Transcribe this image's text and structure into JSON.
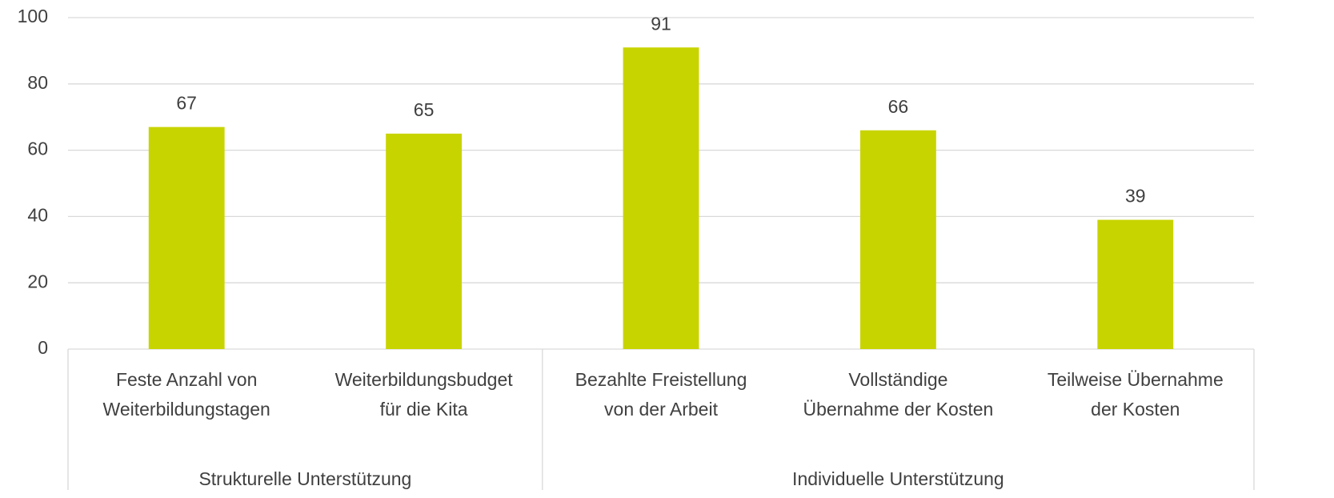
{
  "chart_data": {
    "type": "bar",
    "color": "#c8d400",
    "grid": true,
    "ylim": [
      0,
      100
    ],
    "yticks": [
      0,
      20,
      40,
      60,
      80,
      100
    ],
    "groups": [
      {
        "name": "Strukturelle Unterstützung",
        "categories": [
          "Feste Anzahl von\nWeiterbildungstagen",
          "Weiterbildungsbudget\nfür die Kita"
        ],
        "values": [
          67,
          65
        ]
      },
      {
        "name": "Individuelle Unterstützung",
        "categories": [
          "Bezahlte Freistellung\nvon der Arbeit",
          "Vollständige\nÜbernahme der Kosten",
          "Teilweise Übernahme\nder Kosten"
        ],
        "values": [
          91,
          66,
          39
        ]
      }
    ]
  }
}
